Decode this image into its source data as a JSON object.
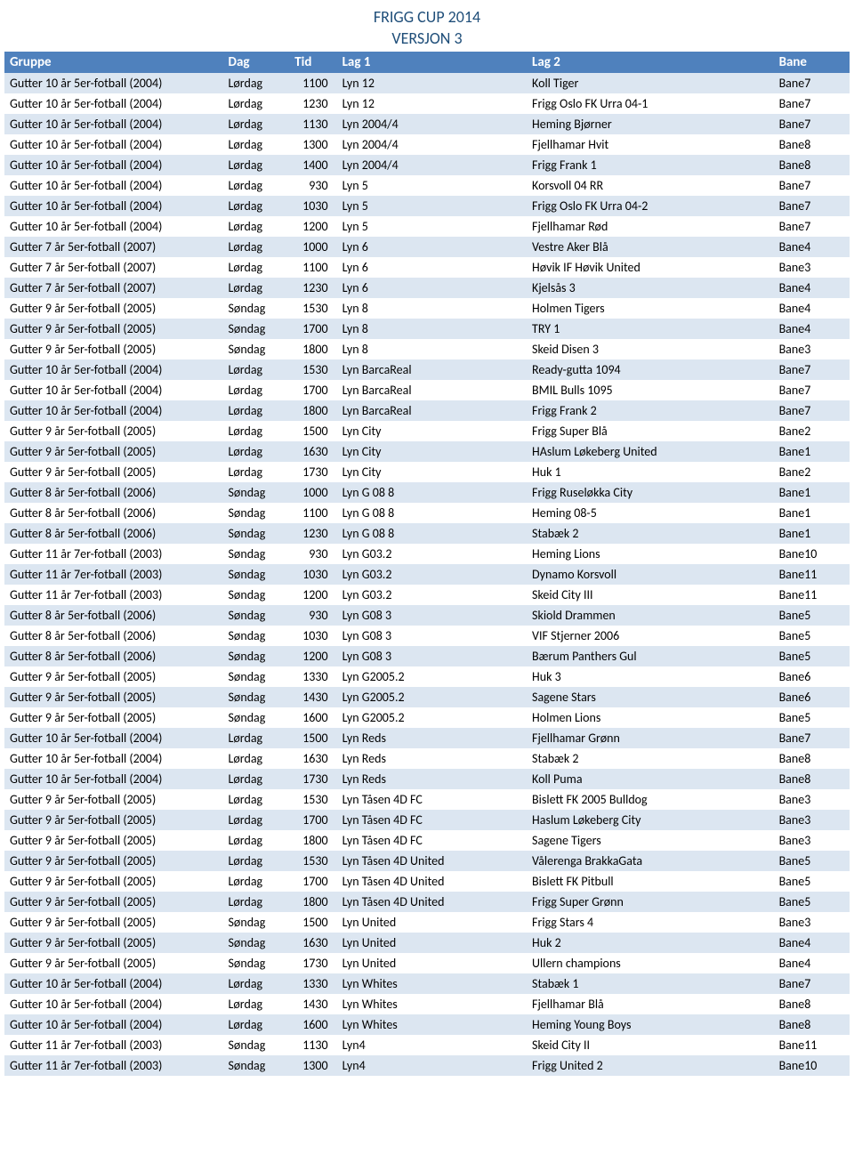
{
  "header": {
    "title": "FRIGG CUP 2014",
    "subtitle": "VERSJON 3"
  },
  "table": {
    "columns": [
      "Gruppe",
      "Dag",
      "Tid",
      "Lag 1",
      "Lag 2",
      "Bane"
    ],
    "rows": [
      [
        "Gutter 10 år 5er-fotball (2004)",
        "Lørdag",
        "1100",
        "Lyn 12",
        "Koll Tiger",
        "Bane7"
      ],
      [
        "Gutter 10 år 5er-fotball (2004)",
        "Lørdag",
        "1230",
        "Lyn 12",
        "Frigg Oslo FK Urra 04-1",
        "Bane7"
      ],
      [
        "Gutter 10 år 5er-fotball (2004)",
        "Lørdag",
        "1130",
        "Lyn 2004/4",
        "Heming Bjørner",
        "Bane7"
      ],
      [
        "Gutter 10 år 5er-fotball (2004)",
        "Lørdag",
        "1300",
        "Lyn 2004/4",
        "Fjellhamar Hvit",
        "Bane8"
      ],
      [
        "Gutter 10 år 5er-fotball (2004)",
        "Lørdag",
        "1400",
        "Lyn 2004/4",
        "Frigg Frank 1",
        "Bane8"
      ],
      [
        "Gutter 10 år 5er-fotball (2004)",
        "Lørdag",
        "930",
        "Lyn 5",
        "Korsvoll 04 RR",
        "Bane7"
      ],
      [
        "Gutter 10 år 5er-fotball (2004)",
        "Lørdag",
        "1030",
        "Lyn 5",
        "Frigg Oslo FK Urra 04-2",
        "Bane7"
      ],
      [
        "Gutter 10 år 5er-fotball (2004)",
        "Lørdag",
        "1200",
        "Lyn 5",
        "Fjellhamar Rød",
        "Bane7"
      ],
      [
        "Gutter 7 år 5er-fotball (2007)",
        "Lørdag",
        "1000",
        "Lyn 6",
        "Vestre Aker Blå",
        "Bane4"
      ],
      [
        "Gutter 7 år 5er-fotball (2007)",
        "Lørdag",
        "1100",
        "Lyn 6",
        "Høvik IF Høvik United",
        "Bane3"
      ],
      [
        "Gutter 7 år 5er-fotball (2007)",
        "Lørdag",
        "1230",
        "Lyn 6",
        "Kjelsås 3",
        "Bane4"
      ],
      [
        "Gutter 9 år 5er-fotball (2005)",
        "Søndag",
        "1530",
        "Lyn 8",
        "Holmen Tigers",
        "Bane4"
      ],
      [
        "Gutter 9 år 5er-fotball (2005)",
        "Søndag",
        "1700",
        "Lyn 8",
        "TRY 1",
        "Bane4"
      ],
      [
        "Gutter 9 år 5er-fotball (2005)",
        "Søndag",
        "1800",
        "Lyn 8",
        "Skeid Disen 3",
        "Bane3"
      ],
      [
        "Gutter 10 år 5er-fotball (2004)",
        "Lørdag",
        "1530",
        "Lyn BarcaReal",
        "Ready-gutta 1094",
        "Bane7"
      ],
      [
        "Gutter 10 år 5er-fotball (2004)",
        "Lørdag",
        "1700",
        "Lyn BarcaReal",
        "BMIL Bulls 1095",
        "Bane7"
      ],
      [
        "Gutter 10 år 5er-fotball (2004)",
        "Lørdag",
        "1800",
        "Lyn BarcaReal",
        "Frigg Frank 2",
        "Bane7"
      ],
      [
        "Gutter 9 år 5er-fotball (2005)",
        "Lørdag",
        "1500",
        "Lyn City",
        "Frigg Super Blå",
        "Bane2"
      ],
      [
        "Gutter 9 år 5er-fotball (2005)",
        "Lørdag",
        "1630",
        "Lyn City",
        "HAslum Løkeberg United",
        "Bane1"
      ],
      [
        "Gutter 9 år 5er-fotball (2005)",
        "Lørdag",
        "1730",
        "Lyn City",
        "Huk 1",
        "Bane2"
      ],
      [
        "Gutter 8 år 5er-fotball (2006)",
        "Søndag",
        "1000",
        "Lyn G 08 8",
        "Frigg Ruseløkka City",
        "Bane1"
      ],
      [
        "Gutter 8 år 5er-fotball (2006)",
        "Søndag",
        "1100",
        "Lyn G 08 8",
        "Heming 08-5",
        "Bane1"
      ],
      [
        "Gutter 8 år 5er-fotball (2006)",
        "Søndag",
        "1230",
        "Lyn G 08 8",
        "Stabæk 2",
        "Bane1"
      ],
      [
        "Gutter 11 år 7er-fotball (2003)",
        "Søndag",
        "930",
        "Lyn G03.2",
        "Heming Lions",
        "Bane10"
      ],
      [
        "Gutter 11 år 7er-fotball (2003)",
        "Søndag",
        "1030",
        "Lyn G03.2",
        "Dynamo Korsvoll",
        "Bane11"
      ],
      [
        "Gutter 11 år 7er-fotball (2003)",
        "Søndag",
        "1200",
        "Lyn G03.2",
        "Skeid City III",
        "Bane11"
      ],
      [
        "Gutter 8 år 5er-fotball (2006)",
        "Søndag",
        "930",
        "Lyn G08 3",
        "Skiold Drammen",
        "Bane5"
      ],
      [
        "Gutter 8 år 5er-fotball (2006)",
        "Søndag",
        "1030",
        "Lyn G08 3",
        "VIF Stjerner 2006",
        "Bane5"
      ],
      [
        "Gutter 8 år 5er-fotball (2006)",
        "Søndag",
        "1200",
        "Lyn G08 3",
        "Bærum Panthers Gul",
        "Bane5"
      ],
      [
        "Gutter 9 år 5er-fotball (2005)",
        "Søndag",
        "1330",
        "Lyn G2005.2",
        "Huk 3",
        "Bane6"
      ],
      [
        "Gutter 9 år 5er-fotball (2005)",
        "Søndag",
        "1430",
        "Lyn G2005.2",
        "Sagene Stars",
        "Bane6"
      ],
      [
        "Gutter 9 år 5er-fotball (2005)",
        "Søndag",
        "1600",
        "Lyn G2005.2",
        "Holmen Lions",
        "Bane5"
      ],
      [
        "Gutter 10 år 5er-fotball (2004)",
        "Lørdag",
        "1500",
        "Lyn Reds",
        "Fjellhamar Grønn",
        "Bane7"
      ],
      [
        "Gutter 10 år 5er-fotball (2004)",
        "Lørdag",
        "1630",
        "Lyn Reds",
        "Stabæk 2",
        "Bane8"
      ],
      [
        "Gutter 10 år 5er-fotball (2004)",
        "Lørdag",
        "1730",
        "Lyn Reds",
        "Koll Puma",
        "Bane8"
      ],
      [
        "Gutter 9 år 5er-fotball (2005)",
        "Lørdag",
        "1530",
        "Lyn Tåsen 4D FC",
        "Bislett FK 2005 Bulldog",
        "Bane3"
      ],
      [
        "Gutter 9 år 5er-fotball (2005)",
        "Lørdag",
        "1700",
        "Lyn Tåsen 4D FC",
        "Haslum Løkeberg City",
        "Bane3"
      ],
      [
        "Gutter 9 år 5er-fotball (2005)",
        "Lørdag",
        "1800",
        "Lyn Tåsen 4D FC",
        "Sagene Tigers",
        "Bane3"
      ],
      [
        "Gutter 9 år 5er-fotball (2005)",
        "Lørdag",
        "1530",
        "Lyn Tåsen 4D United",
        "Vålerenga BrakkaGata",
        "Bane5"
      ],
      [
        "Gutter 9 år 5er-fotball (2005)",
        "Lørdag",
        "1700",
        "Lyn Tåsen 4D United",
        "Bislett FK Pitbull",
        "Bane5"
      ],
      [
        "Gutter 9 år 5er-fotball (2005)",
        "Lørdag",
        "1800",
        "Lyn Tåsen 4D United",
        "Frigg Super Grønn",
        "Bane5"
      ],
      [
        "Gutter 9 år 5er-fotball (2005)",
        "Søndag",
        "1500",
        "Lyn United",
        "Frigg Stars 4",
        "Bane3"
      ],
      [
        "Gutter 9 år 5er-fotball (2005)",
        "Søndag",
        "1630",
        "Lyn United",
        "Huk 2",
        "Bane4"
      ],
      [
        "Gutter 9 år 5er-fotball (2005)",
        "Søndag",
        "1730",
        "Lyn United",
        "Ullern champions",
        "Bane4"
      ],
      [
        "Gutter 10 år 5er-fotball (2004)",
        "Lørdag",
        "1330",
        "Lyn Whites",
        "Stabæk 1",
        "Bane7"
      ],
      [
        "Gutter 10 år 5er-fotball (2004)",
        "Lørdag",
        "1430",
        "Lyn Whites",
        "Fjellhamar Blå",
        "Bane8"
      ],
      [
        "Gutter 10 år 5er-fotball (2004)",
        "Lørdag",
        "1600",
        "Lyn Whites",
        "Heming Young Boys",
        "Bane8"
      ],
      [
        "Gutter 11 år 7er-fotball (2003)",
        "Søndag",
        "1130",
        "Lyn4",
        "Skeid City II",
        "Bane11"
      ],
      [
        "Gutter 11 år 7er-fotball (2003)",
        "Søndag",
        "1300",
        "Lyn4",
        "Frigg United 2",
        "Bane10"
      ]
    ]
  },
  "style": {
    "header_bg": "#4f81bd",
    "header_fg": "#ffffff",
    "row_even_bg": "#dce6f1",
    "row_odd_bg": "#ffffff",
    "title_color": "#1f4e79",
    "font_family": "Calibri, Arial, sans-serif"
  }
}
